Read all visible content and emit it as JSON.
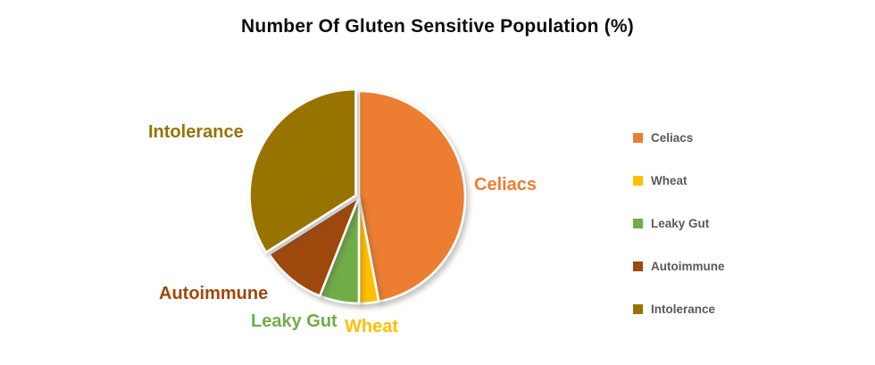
{
  "chart": {
    "title": "Number Of Gluten Sensitive Population (%)"
  },
  "chart_data": {
    "type": "pie",
    "title": "Number Of Gluten Sensitive Population (%)",
    "categories": [
      "Celiacs",
      "Wheat",
      "Leaky Gut",
      "Autoimmune",
      "Intolerance"
    ],
    "values": [
      47,
      3,
      6,
      10,
      34
    ],
    "unit": "%",
    "colors": {
      "Celiacs": "#ED7D31",
      "Wheat": "#FFC000",
      "Leaky Gut": "#70AD47",
      "Autoimmune": "#9E480E",
      "Intolerance": "#997300"
    },
    "start_angle_deg": 0,
    "direction": "clockwise",
    "exploded_slice": "Intolerance",
    "slice_border_color": "#FFFFFF",
    "legend_position": "right",
    "outer_labels_shown": true
  },
  "legend": {
    "items": [
      {
        "label": "Celiacs",
        "color": "#ED7D31"
      },
      {
        "label": "Wheat",
        "color": "#FFC000"
      },
      {
        "label": "Leaky Gut",
        "color": "#70AD47"
      },
      {
        "label": "Autoimmune",
        "color": "#9E480E"
      },
      {
        "label": "Intolerance",
        "color": "#997300"
      }
    ]
  }
}
